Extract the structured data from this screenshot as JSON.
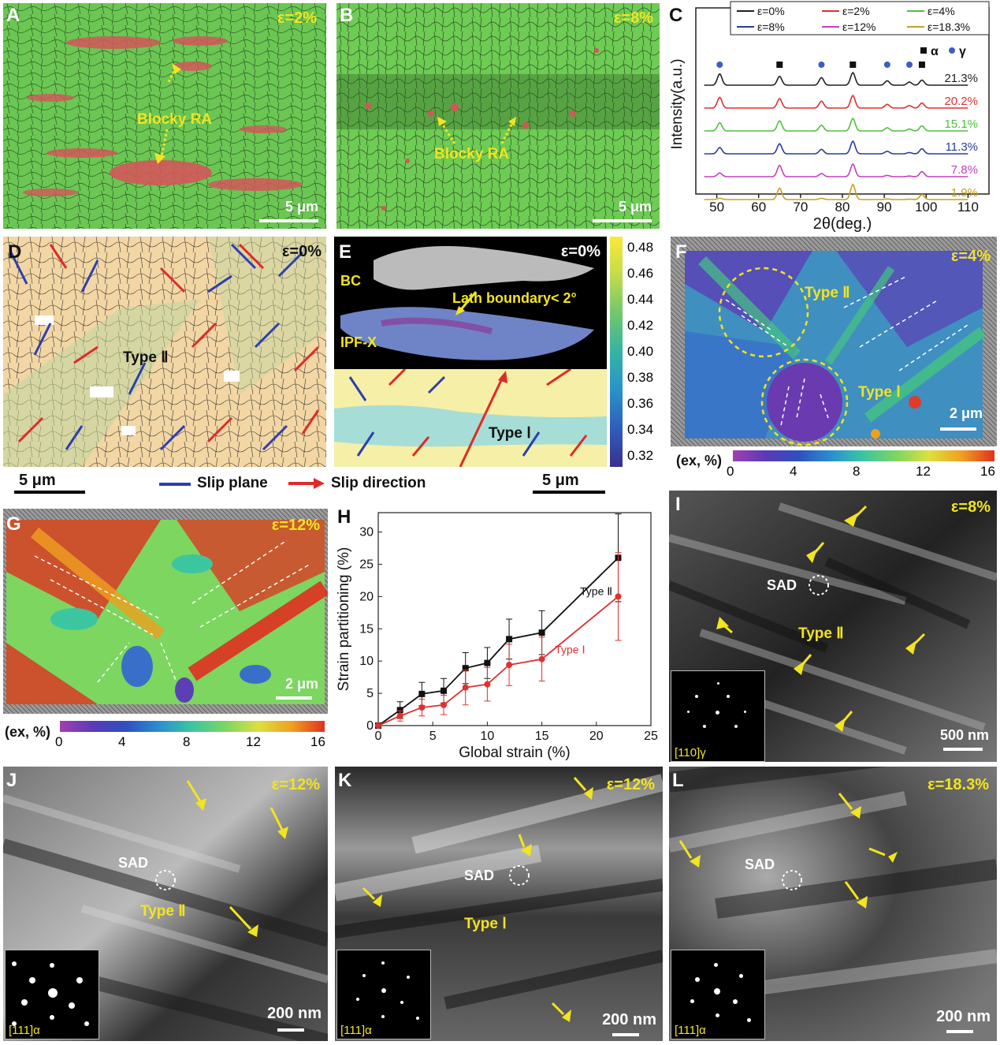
{
  "panels": {
    "A": {
      "label": "A",
      "strain": "ε=2%",
      "annotation": "Blocky RA",
      "scale": "5 μm"
    },
    "B": {
      "label": "B",
      "strain": "ε=8%",
      "annotation": "Blocky RA",
      "scale": "5 μm"
    },
    "C": {
      "label": "C"
    },
    "D": {
      "label": "D",
      "strain": "ε=0%",
      "type": "Type Ⅱ",
      "scale": "5 μm"
    },
    "E": {
      "label": "E",
      "strain": "ε=0%",
      "bc": "BC",
      "ipf": "IPF-X",
      "lath": "Lath boundary< 2°",
      "type": "Type Ⅰ",
      "scale": "5 μm",
      "colorbar_ticks": [
        "0.48",
        "0.46",
        "0.44",
        "0.42",
        "0.40",
        "0.38",
        "0.36",
        "0.34",
        "0.32"
      ]
    },
    "legend_DE": {
      "slip_plane": "Slip plane",
      "slip_direction": "Slip direction"
    },
    "F": {
      "label": "F",
      "strain": "ε=4%",
      "type2": "Type Ⅱ",
      "type1": "Type Ⅰ",
      "scale": "2 μm",
      "cbar_title": "(ex, %)",
      "cbar_ticks": [
        "0",
        "4",
        "8",
        "12",
        "16"
      ]
    },
    "G": {
      "label": "G",
      "strain": "ε=12%",
      "scale": "2 μm",
      "cbar_title": "(ex, %)",
      "cbar_ticks": [
        "0",
        "4",
        "8",
        "12",
        "16"
      ]
    },
    "H": {
      "label": "H"
    },
    "I": {
      "label": "I",
      "strain": "ε=8%",
      "sad": "SAD",
      "type": "Type Ⅱ",
      "scale": "500 nm",
      "inset": "[110]γ"
    },
    "J": {
      "label": "J",
      "strain": "ε=12%",
      "sad": "SAD",
      "type": "Type Ⅱ",
      "scale": "200 nm",
      "inset": "[111]α"
    },
    "K": {
      "label": "K",
      "strain": "ε=12%",
      "sad": "SAD",
      "type": "Type Ⅰ",
      "scale": "200 nm",
      "inset": "[111]α"
    },
    "L": {
      "label": "L",
      "strain": "ε=18.3%",
      "sad": "SAD",
      "scale": "200 nm",
      "inset": "[111]α"
    }
  },
  "colors": {
    "austenite_red": "#d4565a",
    "martensite_green": "#69c950",
    "annotation_yellow": "#f2e41f",
    "slip_plane_blue": "#2c3fb0",
    "slip_direction_red": "#e02a2a"
  },
  "chart_data": [
    {
      "type": "line",
      "panel": "C",
      "xlabel": "2θ(deg.)",
      "ylabel": "Intensity(a.u.)",
      "xlim": [
        45,
        115
      ],
      "xticks": [
        50,
        60,
        70,
        80,
        90,
        100,
        110
      ],
      "legend": [
        "ε=0%",
        "ε=2%",
        "ε=4%",
        "ε=8%",
        "ε=12%",
        "ε=18.3%"
      ],
      "legend_placement": "top",
      "phase_legend": {
        "alpha": "α",
        "gamma": "γ"
      },
      "peaks_alpha": [
        65,
        82.5,
        99
      ],
      "peaks_gamma": [
        50.7,
        75,
        90.7,
        96
      ],
      "series": [
        {
          "name": "ε=0%",
          "color": "#222222",
          "ra_fraction": "21.3%",
          "peaks": [
            [
              50.7,
              0.9
            ],
            [
              65,
              0.7
            ],
            [
              75,
              0.6
            ],
            [
              82.5,
              1.0
            ],
            [
              90.7,
              0.35
            ],
            [
              96,
              0.25
            ],
            [
              99,
              0.4
            ]
          ]
        },
        {
          "name": "ε=2%",
          "color": "#e03030",
          "ra_fraction": "20.2%",
          "peaks": [
            [
              50.7,
              0.85
            ],
            [
              65,
              0.75
            ],
            [
              75,
              0.55
            ],
            [
              82.5,
              1.0
            ],
            [
              90.7,
              0.3
            ],
            [
              96,
              0.2
            ],
            [
              99,
              0.4
            ]
          ]
        },
        {
          "name": "ε=4%",
          "color": "#50c040",
          "ra_fraction": "15.1%",
          "peaks": [
            [
              50.7,
              0.65
            ],
            [
              65,
              0.8
            ],
            [
              75,
              0.45
            ],
            [
              82.5,
              1.0
            ],
            [
              90.7,
              0.25
            ],
            [
              96,
              0.15
            ],
            [
              99,
              0.4
            ]
          ]
        },
        {
          "name": "ε=8%",
          "color": "#2a3f9a",
          "ra_fraction": "11.3%",
          "peaks": [
            [
              50.7,
              0.5
            ],
            [
              65,
              0.8
            ],
            [
              75,
              0.35
            ],
            [
              82.5,
              1.0
            ],
            [
              90.7,
              0.2
            ],
            [
              96,
              0.1
            ],
            [
              99,
              0.4
            ]
          ]
        },
        {
          "name": "ε=12%",
          "color": "#c040c0",
          "ra_fraction": "7.8%",
          "peaks": [
            [
              50.7,
              0.3
            ],
            [
              65,
              0.9
            ],
            [
              75,
              0.25
            ],
            [
              82.5,
              1.0
            ],
            [
              90.7,
              0.1
            ],
            [
              96,
              0.05
            ],
            [
              99,
              0.4
            ]
          ]
        },
        {
          "name": "ε=18.3%",
          "color": "#c8a020",
          "ra_fraction": "1.9%",
          "peaks": [
            [
              50.7,
              0.1
            ],
            [
              65,
              0.9
            ],
            [
              75,
              0.1
            ],
            [
              82.5,
              1.2
            ],
            [
              90.7,
              0.05
            ],
            [
              96,
              0.03
            ],
            [
              99,
              0.4
            ]
          ]
        }
      ]
    },
    {
      "type": "line",
      "panel": "H",
      "xlabel": "Global strain (%)",
      "ylabel": "Strain partitioning (%)",
      "xlim": [
        0,
        25
      ],
      "ylim": [
        0,
        33
      ],
      "xticks": [
        0,
        5,
        10,
        15,
        20,
        25
      ],
      "yticks": [
        0,
        5,
        10,
        15,
        20,
        25,
        30
      ],
      "series": [
        {
          "name": "Type Ⅱ",
          "color": "#111111",
          "marker": "square",
          "x": [
            0,
            2,
            4,
            6,
            8,
            10,
            12,
            15,
            22
          ],
          "y": [
            0,
            2.4,
            4.9,
            5.4,
            8.9,
            9.7,
            13.4,
            14.4,
            26
          ],
          "err": [
            0,
            1.3,
            1.8,
            1.9,
            2.4,
            2.4,
            3.1,
            3.4,
            6.8
          ]
        },
        {
          "name": "Type Ⅰ",
          "color": "#e03030",
          "marker": "circle",
          "x": [
            0,
            2,
            4,
            6,
            8,
            10,
            12,
            15,
            22
          ],
          "y": [
            0,
            1.5,
            2.8,
            3.2,
            5.9,
            6.4,
            9.4,
            10.3,
            20
          ],
          "err": [
            0,
            0.8,
            1.3,
            1.5,
            2.7,
            2.6,
            3.2,
            3.4,
            6.8
          ]
        }
      ]
    }
  ]
}
